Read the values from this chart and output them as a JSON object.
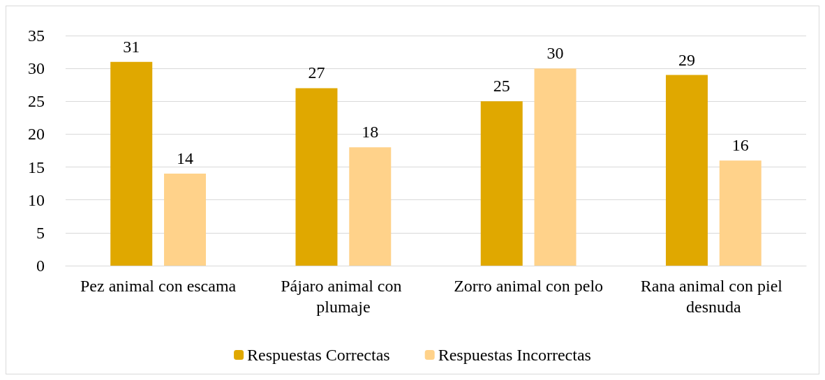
{
  "chart_data": {
    "type": "bar",
    "categories": [
      "Pez animal con escama",
      "Pájaro animal con plumaje",
      "Zorro animal con pelo",
      "Rana animal con piel desnuda"
    ],
    "series": [
      {
        "name": "Respuestas Correctas",
        "color": "#e0a800",
        "values": [
          31,
          27,
          25,
          29
        ]
      },
      {
        "name": "Respuestas Incorrectas",
        "color": "#ffd28a",
        "values": [
          14,
          18,
          30,
          16
        ]
      }
    ],
    "ylim": [
      0,
      35
    ],
    "yticks": [
      0,
      5,
      10,
      15,
      20,
      25,
      30,
      35
    ],
    "grid": "y",
    "legend": "bottom",
    "data_labels": true
  }
}
